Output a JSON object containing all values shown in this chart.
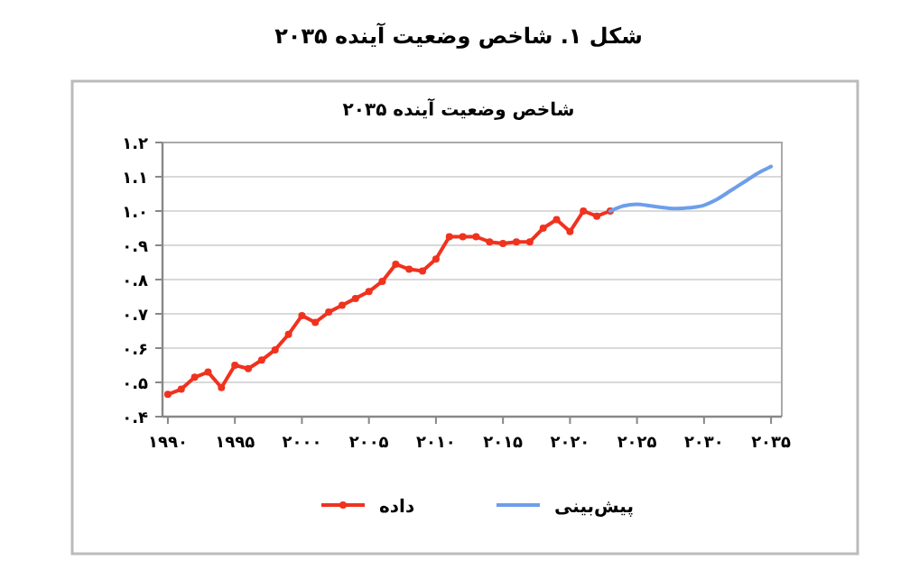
{
  "chart_data": {
    "type": "line",
    "title": "شکل ۱. شاخص وضعیت آینده ۲۰۳۵",
    "subtitle": "شاخص وضعیت آینده ۲۰۳۵",
    "xlim": [
      1989.6,
      2035.8
    ],
    "xticks": [
      {
        "value": 1990,
        "label": "۱۹۹۰"
      },
      {
        "value": 1995,
        "label": "۱۹۹۵"
      },
      {
        "value": 2000,
        "label": "۲۰۰۰"
      },
      {
        "value": 2005,
        "label": "۲۰۰۵"
      },
      {
        "value": 2010,
        "label": "۲۰۱۰"
      },
      {
        "value": 2015,
        "label": "۲۰۱۵"
      },
      {
        "value": 2020,
        "label": "۲۰۲۰"
      },
      {
        "value": 2025,
        "label": "۲۰۲۵"
      },
      {
        "value": 2030,
        "label": "۲۰۳۰"
      },
      {
        "value": 2035,
        "label": "۲۰۳۵"
      }
    ],
    "ylim": [
      0.4,
      1.2
    ],
    "yticks": [
      {
        "value": 0.4,
        "label": "۰.۴"
      },
      {
        "value": 0.5,
        "label": "۰.۵"
      },
      {
        "value": 0.6,
        "label": "۰.۶"
      },
      {
        "value": 0.7,
        "label": "۰.۷"
      },
      {
        "value": 0.8,
        "label": "۰.۸"
      },
      {
        "value": 0.9,
        "label": "۰.۹"
      },
      {
        "value": 1.0,
        "label": "۱.۰"
      },
      {
        "value": 1.1,
        "label": "۱.۱"
      },
      {
        "value": 1.2,
        "label": "۱.۲"
      }
    ],
    "grid": "y",
    "legend": "bottom",
    "series": [
      {
        "name": "داده",
        "color": "#f0321e",
        "marker": "circle",
        "x": [
          1990,
          1991,
          1992,
          1993,
          1994,
          1995,
          1996,
          1997,
          1998,
          1999,
          2000,
          2001,
          2002,
          2003,
          2004,
          2005,
          2006,
          2007,
          2008,
          2009,
          2010,
          2011,
          2012,
          2013,
          2014,
          2015,
          2016,
          2017,
          2018,
          2019,
          2020,
          2021,
          2022,
          2023
        ],
        "values": [
          0.465,
          0.48,
          0.515,
          0.53,
          0.485,
          0.55,
          0.54,
          0.565,
          0.595,
          0.64,
          0.695,
          0.675,
          0.705,
          0.725,
          0.745,
          0.765,
          0.795,
          0.845,
          0.83,
          0.825,
          0.86,
          0.925,
          0.925,
          0.925,
          0.91,
          0.905,
          0.91,
          0.91,
          0.95,
          0.975,
          0.94,
          1.0,
          0.985,
          1.0
        ]
      },
      {
        "name": "پیش‌بینی",
        "color": "#6d9eeb",
        "marker": "none",
        "x": [
          2023,
          2024,
          2025,
          2026,
          2027,
          2028,
          2029,
          2030,
          2031,
          2032,
          2033,
          2034,
          2035
        ],
        "values": [
          1.0,
          1.015,
          1.02,
          1.015,
          1.01,
          1.007,
          1.01,
          1.017,
          1.035,
          1.06,
          1.085,
          1.11,
          1.13
        ]
      }
    ]
  }
}
